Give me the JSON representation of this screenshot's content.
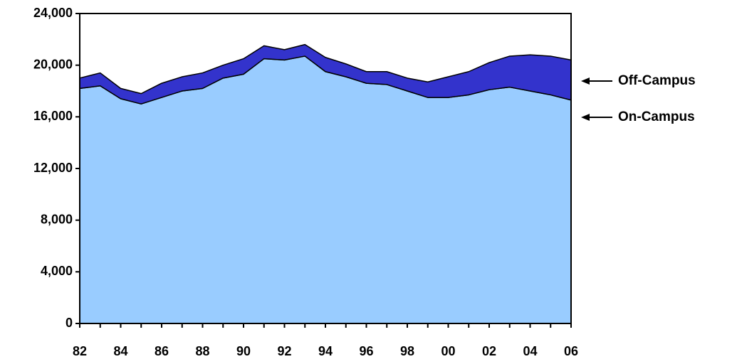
{
  "chart_data": {
    "type": "area",
    "stacked": true,
    "categories": [
      "82",
      null,
      "84",
      null,
      "86",
      null,
      "88",
      null,
      "90",
      null,
      "92",
      null,
      "94",
      null,
      "96",
      null,
      "98",
      null,
      "00",
      null,
      "02",
      null,
      "04",
      null,
      "06"
    ],
    "series": [
      {
        "name": "On-Campus",
        "color": "#99ccff",
        "values": [
          18200,
          18400,
          17400,
          17000,
          17500,
          18000,
          18200,
          19000,
          19300,
          20500,
          20400,
          20700,
          19500,
          19100,
          18600,
          18500,
          18000,
          17500,
          17500,
          17700,
          18100,
          18300,
          18000,
          17700,
          17300
        ]
      },
      {
        "name": "Off-Campus",
        "color": "#3333cc",
        "values": [
          800,
          1000,
          800,
          800,
          1100,
          1100,
          1200,
          1000,
          1200,
          1000,
          800,
          900,
          1100,
          1000,
          900,
          1000,
          1000,
          1200,
          1600,
          1800,
          2100,
          2400,
          2800,
          3000,
          3100
        ]
      }
    ],
    "ylim": [
      0,
      24000
    ],
    "yticks": [
      0,
      {
        "value": 4000,
        "label": "4,000"
      },
      {
        "value": 8000,
        "label": "8,000"
      },
      {
        "value": 12000,
        "label": "12,000"
      },
      {
        "value": 16000,
        "label": "16,000"
      },
      {
        "value": 20000,
        "label": "20,000"
      },
      {
        "value": 24000,
        "label": "24,000"
      }
    ],
    "grid": false
  }
}
